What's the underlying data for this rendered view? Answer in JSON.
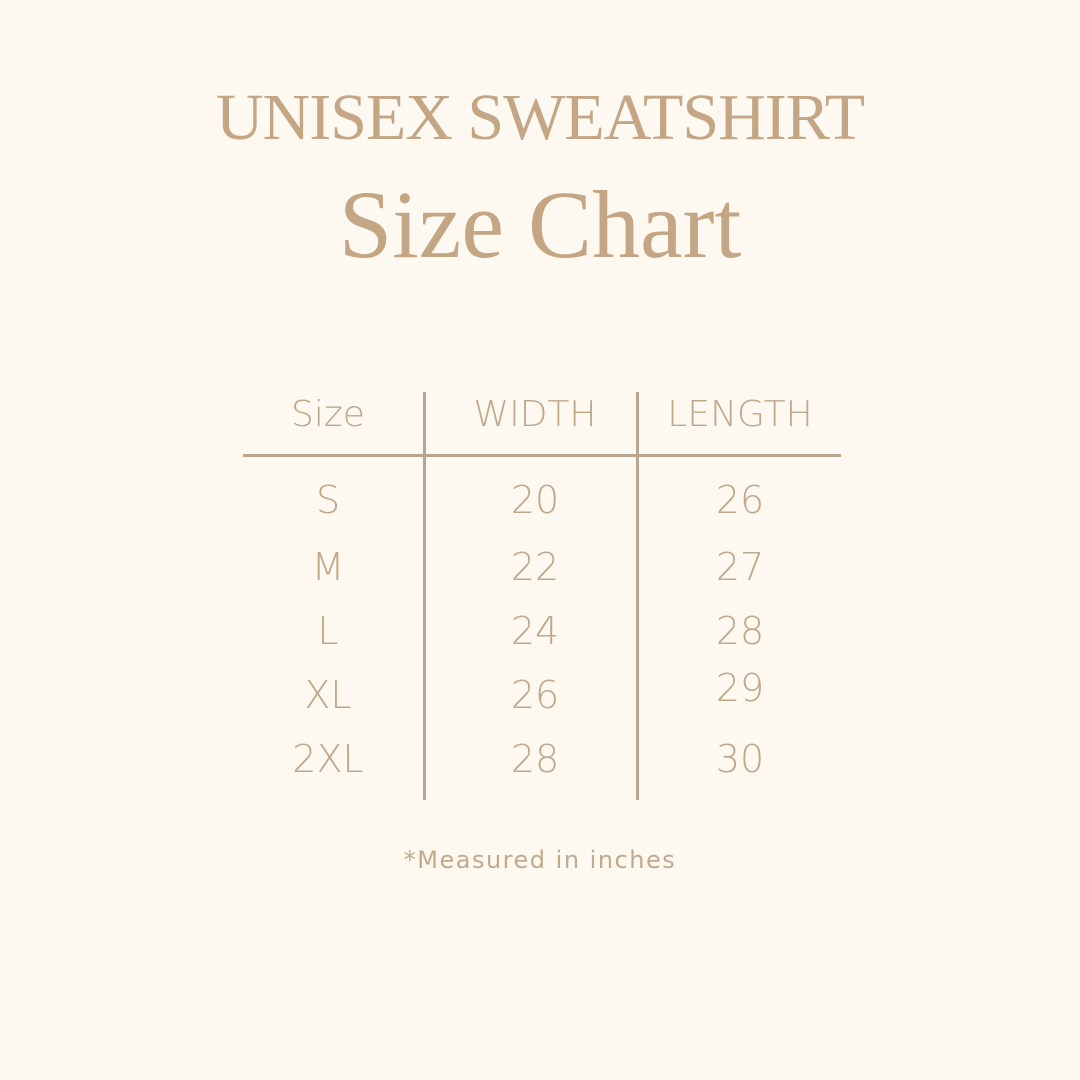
{
  "title": "UNISEX SWEATSHIRT",
  "subtitle": "Size Chart",
  "table": {
    "headers": [
      "Size",
      "WIDTH",
      "LENGTH"
    ],
    "rows": [
      [
        "S",
        "20",
        "26"
      ],
      [
        "M",
        "22",
        "27"
      ],
      [
        "L",
        "24",
        "28"
      ],
      [
        "XL",
        "26",
        "29"
      ],
      [
        "2XL",
        "28",
        "30"
      ]
    ]
  },
  "footnote": "*Measured in inches",
  "colors": {
    "background": "#fdf8f0",
    "text": "#c2a98c",
    "lines": "#b8a690"
  }
}
